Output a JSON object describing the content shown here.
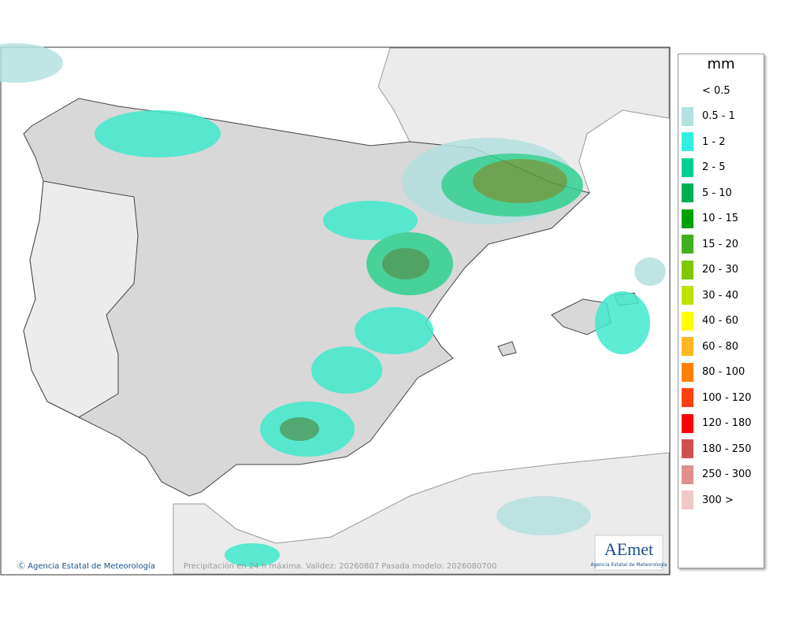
{
  "legend": {
    "title": "mm",
    "items": [
      {
        "label": "< 0.5"
      },
      {
        "label": "0.5 - 1",
        "color": "#b4e0e0"
      },
      {
        "label": "1 - 2",
        "color": "#30f0e0"
      },
      {
        "label": "2 - 5",
        "color": "#00d090"
      },
      {
        "label": "5 - 10",
        "color": "#00b050"
      },
      {
        "label": "10 - 15",
        "color": "#00a000"
      },
      {
        "label": "15 - 20",
        "color": "#40b020"
      },
      {
        "label": "20 - 30",
        "color": "#80c800"
      },
      {
        "label": "30 - 40",
        "color": "#c0e000"
      },
      {
        "label": "40 - 60",
        "color": "#ffff00"
      },
      {
        "label": "60 - 80",
        "color": "#ffb820"
      },
      {
        "label": "80 - 100",
        "color": "#ff8000"
      },
      {
        "label": "100 - 120",
        "color": "#ff4010"
      },
      {
        "label": "120 - 180",
        "color": "#ff0000"
      },
      {
        "label": "180 - 250",
        "color": "#d05050"
      },
      {
        "label": "250 - 300",
        "color": "#e09090"
      },
      {
        "label": "300 >",
        "color": "#f0c8c8"
      }
    ]
  },
  "footer": {
    "agency": "Ⓒ Agencia Estatal de Meteorología",
    "caption": "Precipitación en 24 h máxima. Validez: 20260807 Pasada modelo: 2026080700"
  },
  "logo": {
    "name": "AEmet",
    "caption": "Agencia Estatal de Meteorología"
  }
}
